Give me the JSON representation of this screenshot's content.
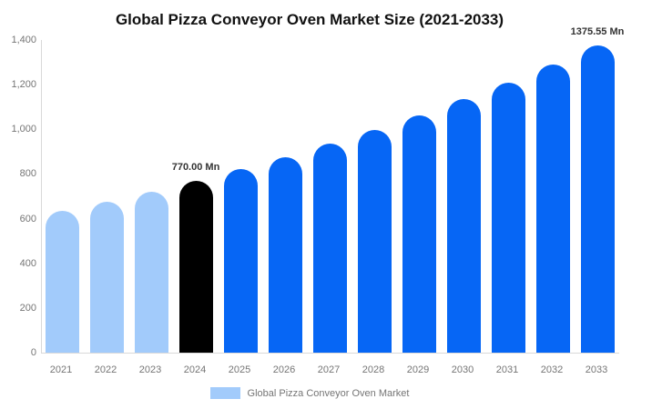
{
  "chart_data": {
    "type": "bar",
    "title": "Global Pizza Conveyor Oven Market Size (2021-2033)",
    "categories": [
      "2021",
      "2022",
      "2023",
      "2024",
      "2025",
      "2026",
      "2027",
      "2028",
      "2029",
      "2030",
      "2031",
      "2032",
      "2033"
    ],
    "values": [
      634.6,
      676.9,
      722.0,
      770.0,
      821.3,
      876.1,
      934.5,
      996.8,
      1063.2,
      1134.1,
      1209.7,
      1290.3,
      1375.55
    ],
    "unit": "Mn",
    "bar_colors": [
      "#A2CBFB",
      "#A2CBFB",
      "#A2CBFB",
      "#000000",
      "#0666F5",
      "#0666F5",
      "#0666F5",
      "#0666F5",
      "#0666F5",
      "#0666F5",
      "#0666F5",
      "#0666F5",
      "#0666F5"
    ],
    "ylim": [
      0,
      1400
    ],
    "ytick_values": [
      0,
      200,
      400,
      600,
      800,
      1000,
      1200,
      1400
    ],
    "ytick_labels": [
      "0",
      "200",
      "400",
      "600",
      "800",
      "1,000",
      "1,200",
      "1,400"
    ],
    "xlabel": "",
    "ylabel": "",
    "grid": false,
    "annotations": [
      {
        "category": "2024",
        "text": "770.00 Mn"
      },
      {
        "category": "2033",
        "text": "1375.55 Mn"
      }
    ],
    "legend": {
      "position": "bottom",
      "label": "Global Pizza Conveyor Oven Market",
      "swatch_color": "#A2CBFB"
    },
    "colors": {
      "light_blue": "#A2CBFB",
      "blue": "#0666F5",
      "black": "#000000",
      "axis_line": "#D9D9D9",
      "tick_text": "#757575",
      "title_text": "#111111",
      "annotation_text": "#333333",
      "background": "#FFFFFF"
    }
  }
}
